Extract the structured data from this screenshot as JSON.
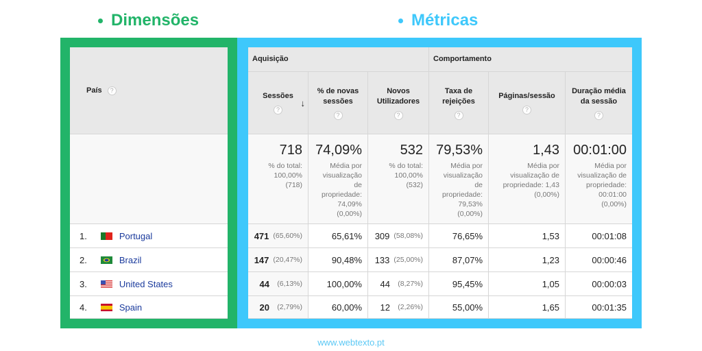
{
  "headings": {
    "dimensions": "Dimensões",
    "metrics": "Métricas",
    "dimensions_color": "#22b469",
    "metrics_color": "#3ec8fb"
  },
  "dimension_header": "País",
  "groups": [
    "Aquisição",
    "Comportamento"
  ],
  "columns": [
    "Sessões",
    "% de novas sessões",
    "Novos Utilizadores",
    "Taxa de rejeições",
    "Páginas/sessão",
    "Duração média da sessão"
  ],
  "totals": [
    {
      "value": "718",
      "sub": [
        "% do total:",
        "100,00%",
        "(718)"
      ]
    },
    {
      "value": "74,09%",
      "sub": [
        "Média por",
        "visualização",
        "de",
        "propriedade:",
        "74,09%",
        "(0,00%)"
      ]
    },
    {
      "value": "532",
      "sub": [
        "% do total:",
        "100,00%",
        "(532)"
      ]
    },
    {
      "value": "79,53%",
      "sub": [
        "Média por",
        "visualização",
        "de",
        "propriedade:",
        "79,53%",
        "(0,00%)"
      ]
    },
    {
      "value": "1,43",
      "sub": [
        "Média por",
        "visualização de",
        "propriedade: 1,43",
        "(0,00%)"
      ]
    },
    {
      "value": "00:01:00",
      "sub": [
        "Média por",
        "visualização de",
        "propriedade:",
        "00:01:00",
        "(0,00%)"
      ]
    }
  ],
  "rows": [
    {
      "rank": "1.",
      "country": "Portugal",
      "flag": "portugal-flag",
      "sessions": "471",
      "sessions_pct": "(65,60%)",
      "new_pct": "65,61%",
      "new_users": "309",
      "new_users_pct": "(58,08%)",
      "bounce": "76,65%",
      "pages": "1,53",
      "duration": "00:01:08"
    },
    {
      "rank": "2.",
      "country": "Brazil",
      "flag": "brazil-flag",
      "sessions": "147",
      "sessions_pct": "(20,47%)",
      "new_pct": "90,48%",
      "new_users": "133",
      "new_users_pct": "(25,00%)",
      "bounce": "87,07%",
      "pages": "1,23",
      "duration": "00:00:46"
    },
    {
      "rank": "3.",
      "country": "United States",
      "flag": "usa-flag",
      "sessions": "44",
      "sessions_pct": "(6,13%)",
      "new_pct": "100,00%",
      "new_users": "44",
      "new_users_pct": "(8,27%)",
      "bounce": "95,45%",
      "pages": "1,05",
      "duration": "00:00:03"
    },
    {
      "rank": "4.",
      "country": "Spain",
      "flag": "spain-flag",
      "sessions": "20",
      "sessions_pct": "(2,79%)",
      "new_pct": "60,00%",
      "new_users": "12",
      "new_users_pct": "(2,26%)",
      "bounce": "55,00%",
      "pages": "1,65",
      "duration": "00:01:35"
    }
  ],
  "footer": "www.webtexto.pt"
}
